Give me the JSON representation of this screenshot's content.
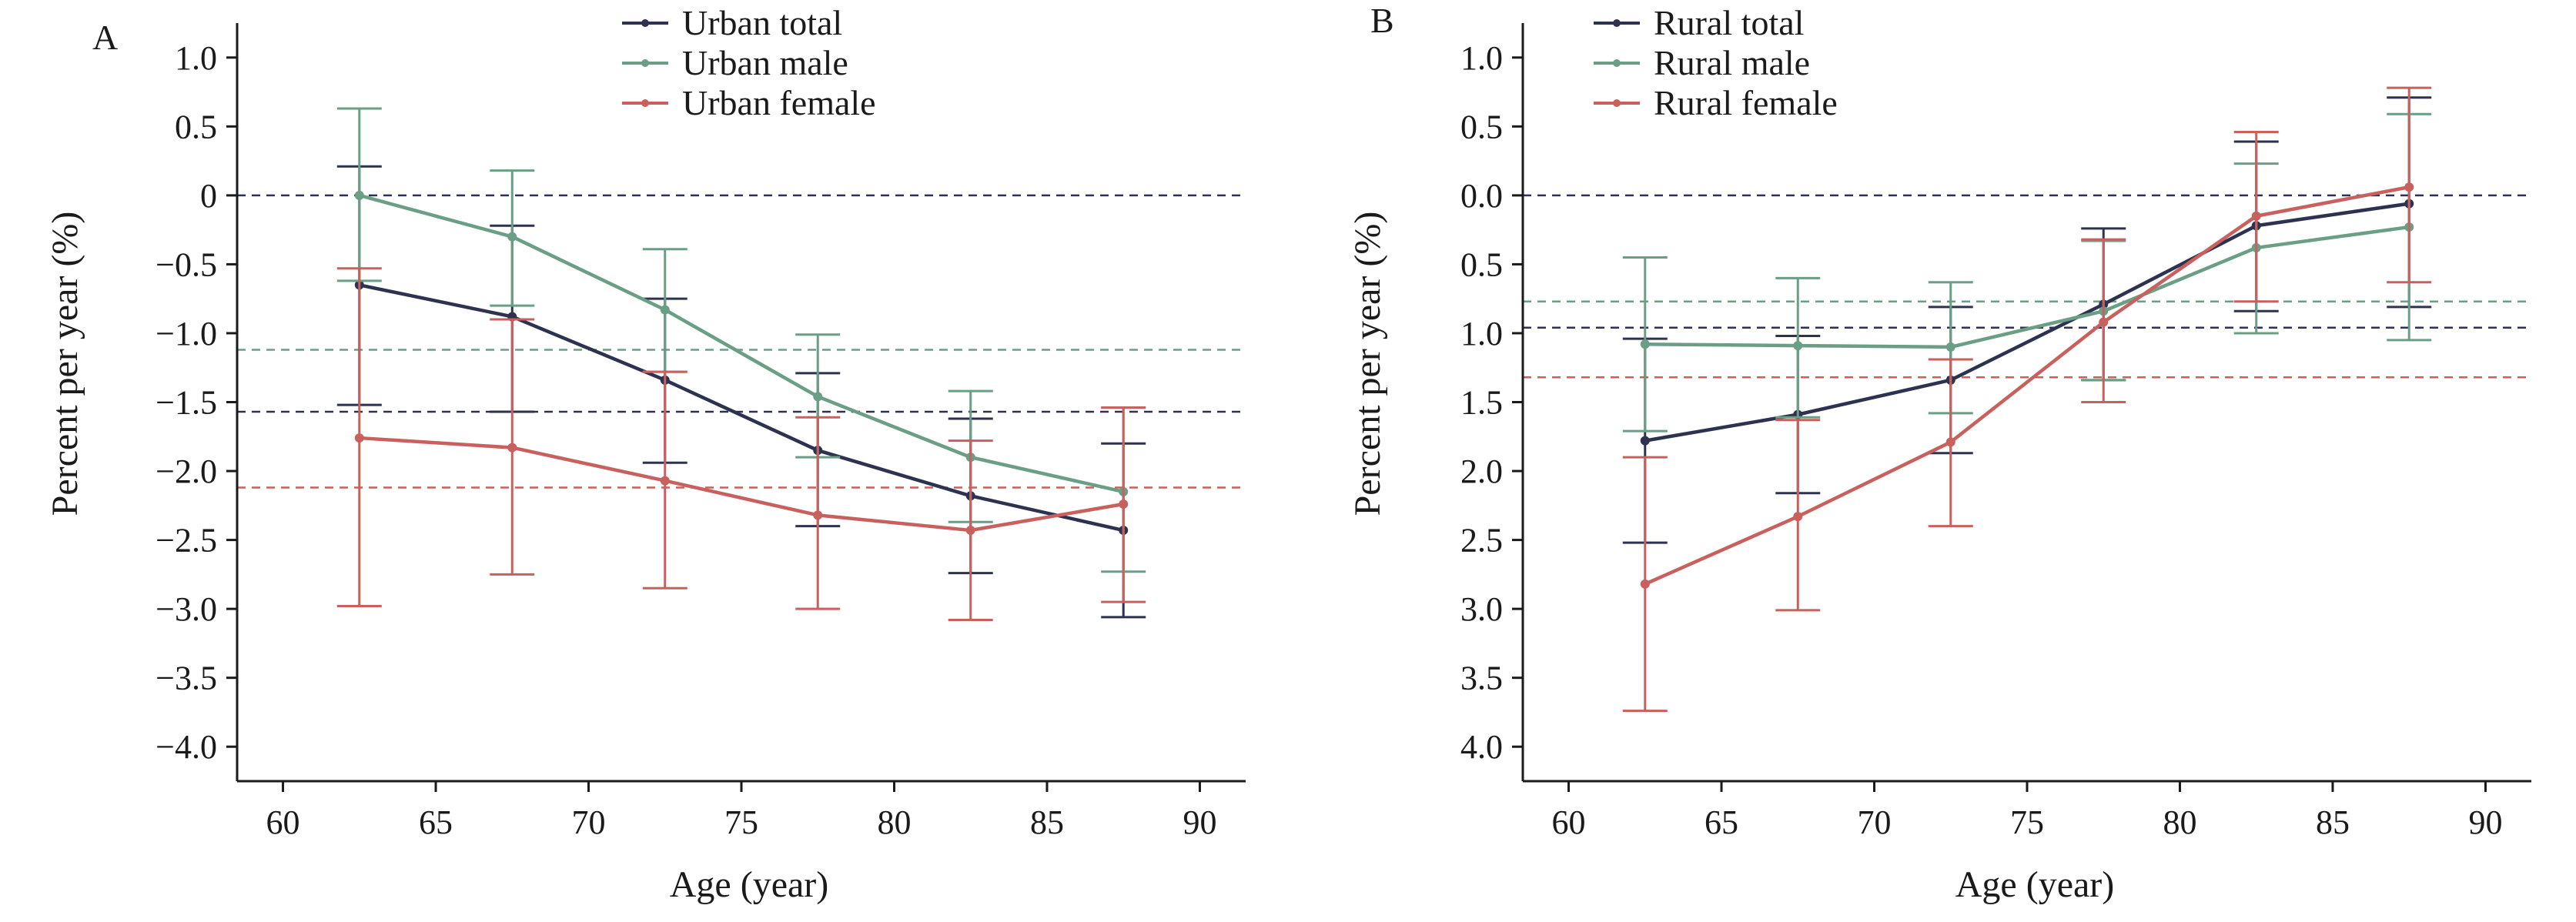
{
  "colors": {
    "total": "#2d3250",
    "male": "#6a9e85",
    "female": "#c8605e",
    "axis": "#1a1a1a"
  },
  "chart_data": [
    {
      "type": "line",
      "panel": "A",
      "title": "",
      "xlabel": "Age (year)",
      "ylabel": "Percent per year (%)",
      "xlim": [
        58.5,
        91.5
      ],
      "ylim": [
        -4.25,
        1.25
      ],
      "xticks": [
        60,
        65,
        70,
        75,
        80,
        85,
        90
      ],
      "xtick_labels": [
        "60",
        "65",
        "70",
        "75",
        "80",
        "85",
        "90"
      ],
      "yticks": [
        1.0,
        0.5,
        0,
        -0.5,
        -1.0,
        -1.5,
        -2.0,
        -2.5,
        -3.0,
        -3.5,
        -4.0
      ],
      "ytick_labels": [
        "1.0",
        "0.5",
        "0",
        "−0.5",
        "−1.0",
        "−1.5",
        "−2.0",
        "−2.5",
        "−3.0",
        "−3.5",
        "−4.0"
      ],
      "legend_position": "top-center",
      "x": [
        62.5,
        67.5,
        72.5,
        77.5,
        82.5,
        87.5
      ],
      "reference_lines": [
        {
          "y": 0,
          "series": "total"
        },
        {
          "y": -1.57,
          "series": "total"
        },
        {
          "y": -1.12,
          "series": "male"
        },
        {
          "y": -2.12,
          "series": "female"
        }
      ],
      "series": [
        {
          "name": "Urban total",
          "key": "total",
          "values": [
            -0.65,
            -0.88,
            -1.34,
            -1.85,
            -2.18,
            -2.43
          ],
          "lower": [
            -1.52,
            -1.57,
            -1.94,
            -2.4,
            -2.74,
            -3.06
          ],
          "upper": [
            0.21,
            -0.22,
            -0.75,
            -1.29,
            -1.62,
            -1.8
          ]
        },
        {
          "name": "Urban male",
          "key": "male",
          "values": [
            0.0,
            -0.3,
            -0.83,
            -1.46,
            -1.9,
            -2.15
          ],
          "lower": [
            -0.62,
            -0.8,
            -1.28,
            -1.9,
            -2.37,
            -2.73
          ],
          "upper": [
            0.63,
            0.18,
            -0.39,
            -1.01,
            -1.42,
            -1.54
          ]
        },
        {
          "name": "Urban female",
          "key": "female",
          "values": [
            -1.76,
            -1.83,
            -2.07,
            -2.32,
            -2.43,
            -2.24
          ],
          "lower": [
            -2.98,
            -2.75,
            -2.85,
            -3.0,
            -3.08,
            -2.95
          ],
          "upper": [
            -0.53,
            -0.9,
            -1.28,
            -1.61,
            -1.78,
            -1.54
          ]
        }
      ]
    },
    {
      "type": "line",
      "panel": "B",
      "title": "",
      "xlabel": "Age (year)",
      "ylabel": "Percent per year (%)",
      "xlim": [
        58.5,
        91.5
      ],
      "ylim": [
        4.25,
        -1.25
      ],
      "xticks": [
        60,
        65,
        70,
        75,
        80,
        85,
        90
      ],
      "xtick_labels": [
        "60",
        "65",
        "70",
        "75",
        "80",
        "85",
        "90"
      ],
      "yticks": [
        -1.0,
        -0.5,
        0.0,
        0.5,
        1.0,
        1.5,
        2.0,
        2.5,
        3.0,
        3.5,
        4.0
      ],
      "ytick_labels": [
        "1.0",
        "0.5",
        "0.0",
        "0.5",
        "1.0",
        "1.5",
        "2.0",
        "2.5",
        "3.0",
        "3.5",
        "4.0"
      ],
      "legend_position": "top-left",
      "x": [
        62.5,
        67.5,
        72.5,
        77.5,
        82.5,
        87.5
      ],
      "reference_lines": [
        {
          "y": 0,
          "series": "total"
        },
        {
          "y": 0.96,
          "series": "total"
        },
        {
          "y": 0.77,
          "series": "male"
        },
        {
          "y": 1.32,
          "series": "female"
        }
      ],
      "series": [
        {
          "name": "Rural total",
          "key": "total",
          "values": [
            1.78,
            1.59,
            1.34,
            0.79,
            0.22,
            0.06
          ],
          "lower": [
            1.04,
            1.02,
            0.81,
            0.24,
            -0.39,
            -0.71
          ],
          "upper": [
            2.52,
            2.16,
            1.87,
            1.34,
            0.84,
            0.81
          ]
        },
        {
          "name": "Rural male",
          "key": "male",
          "values": [
            1.08,
            1.09,
            1.1,
            0.84,
            0.38,
            0.23
          ],
          "lower": [
            0.45,
            0.6,
            0.63,
            0.33,
            -0.23,
            -0.59
          ],
          "upper": [
            1.71,
            1.61,
            1.58,
            1.34,
            1.0,
            1.05
          ]
        },
        {
          "name": "Rural female",
          "key": "female",
          "values": [
            2.82,
            2.33,
            1.79,
            0.92,
            0.15,
            -0.06
          ],
          "lower": [
            1.9,
            1.63,
            1.19,
            0.32,
            -0.46,
            -0.78
          ],
          "upper": [
            3.74,
            3.01,
            2.4,
            1.5,
            0.77,
            0.63
          ]
        }
      ]
    }
  ]
}
